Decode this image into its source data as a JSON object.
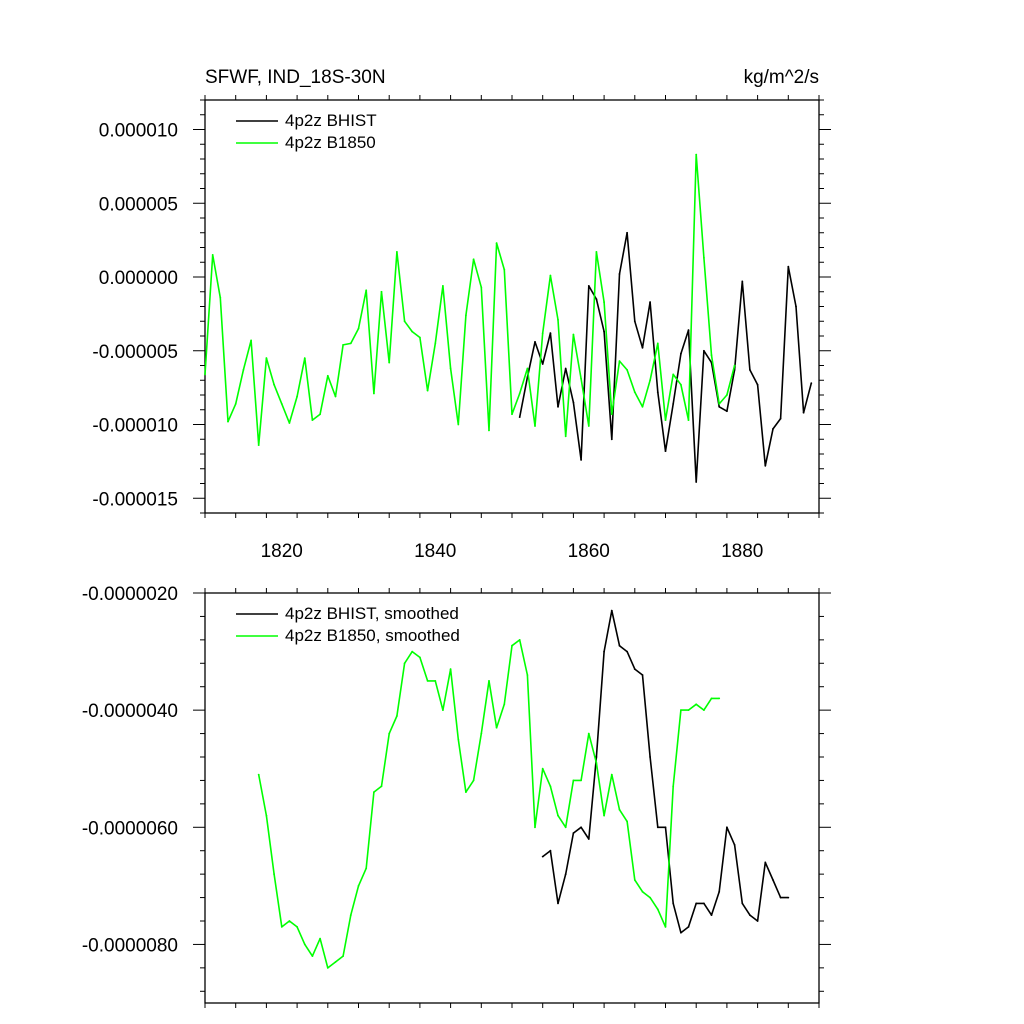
{
  "chart_data": [
    {
      "type": "line",
      "title_left": "SFWF, IND_18S-30N",
      "title_right": "kg/m^2/s",
      "xlim": [
        1810,
        1890
      ],
      "ylim": [
        -1.6e-05,
        1.2e-05
      ],
      "x_ticks": [
        1820,
        1840,
        1860,
        1880
      ],
      "x_tick_labels": [
        "1820",
        "1840",
        "1860",
        "1880"
      ],
      "y_ticks": [
        1e-05,
        5e-06,
        0,
        -5e-06,
        -1e-05,
        -1.5e-05
      ],
      "y_tick_labels": [
        "0.000010",
        "0.000005",
        "0.000000",
        "-0.000005",
        "-0.000010",
        "-0.000015"
      ],
      "legend_position": "top-left",
      "series": [
        {
          "name": "4p2z BHIST",
          "color": "#000000",
          "x": [
            1851,
            1852,
            1853,
            1854,
            1855,
            1856,
            1857,
            1858,
            1859,
            1860,
            1861,
            1862,
            1863,
            1864,
            1865,
            1866,
            1867,
            1868,
            1869,
            1870,
            1871,
            1872,
            1873,
            1874,
            1875,
            1876,
            1877,
            1878,
            1879,
            1880,
            1881,
            1882,
            1883,
            1884,
            1885,
            1886,
            1887,
            1888,
            1889
          ],
          "y": [
            -9.5e-06,
            -6.8e-06,
            -4.4e-06,
            -5.9e-06,
            -3.8e-06,
            -8.8e-06,
            -6.2e-06,
            -8.5e-06,
            -1.24e-05,
            -6e-07,
            -1.5e-06,
            -3.7e-06,
            -1.1e-05,
            2e-07,
            3e-06,
            -3e-06,
            -4.8e-06,
            -1.7e-06,
            -7.8e-06,
            -1.18e-05,
            -8.6e-06,
            -5.2e-06,
            -3.6e-06,
            -1.39e-05,
            -5e-06,
            -5.8e-06,
            -8.8e-06,
            -9.1e-06,
            -6.3e-06,
            -3e-07,
            -6.3e-06,
            -7.3e-06,
            -1.28e-05,
            -1.03e-05,
            -9.6e-06,
            7e-07,
            -2e-06,
            -9.2e-06,
            -7.2e-06
          ]
        },
        {
          "name": "4p2z B1850",
          "color": "#00ff00",
          "x": [
            1810,
            1811,
            1812,
            1813,
            1814,
            1815,
            1816,
            1817,
            1818,
            1819,
            1820,
            1821,
            1822,
            1823,
            1824,
            1825,
            1826,
            1827,
            1828,
            1829,
            1830,
            1831,
            1832,
            1833,
            1834,
            1835,
            1836,
            1837,
            1838,
            1839,
            1840,
            1841,
            1842,
            1843,
            1844,
            1845,
            1846,
            1847,
            1848,
            1849,
            1850,
            1851,
            1852,
            1853,
            1854,
            1855,
            1856,
            1857,
            1858,
            1859,
            1860,
            1861,
            1862,
            1863,
            1864,
            1865,
            1866,
            1867,
            1868,
            1869,
            1870,
            1871,
            1872,
            1873,
            1874,
            1875,
            1876,
            1877,
            1878,
            1879
          ],
          "y": [
            -6.6e-06,
            1.5e-06,
            -1.4e-06,
            -9.8e-06,
            -8.6e-06,
            -6.3e-06,
            -4.3e-06,
            -1.14e-05,
            -5.5e-06,
            -7.3e-06,
            -8.6e-06,
            -9.9e-06,
            -8.1e-06,
            -5.5e-06,
            -9.7e-06,
            -9.3e-06,
            -6.7e-06,
            -8.1e-06,
            -4.6e-06,
            -4.5e-06,
            -3.5e-06,
            -9e-07,
            -7.9e-06,
            -1e-06,
            -5.8e-06,
            1.7e-06,
            -3e-06,
            -3.7e-06,
            -4.1e-06,
            -7.7e-06,
            -4.5e-06,
            -6e-07,
            -6.2e-06,
            -1e-05,
            -2.6e-06,
            1.2e-06,
            -7e-07,
            -1.04e-05,
            2.3e-06,
            5e-07,
            -9.3e-06,
            -7.9e-06,
            -6.2e-06,
            -1.01e-05,
            -3.8e-06,
            1e-07,
            -2.9e-06,
            -1.08e-05,
            -3.9e-06,
            -6.9e-06,
            -1.01e-05,
            1.7e-06,
            -1.7e-06,
            -9.3e-06,
            -5.7e-06,
            -6.3e-06,
            -7.8e-06,
            -8.8e-06,
            -7e-06,
            -4.5e-06,
            -9.7e-06,
            -6.6e-06,
            -7.3e-06,
            -9.7e-06,
            8.3e-06,
            1.3e-06,
            -5.3e-06,
            -8.6e-06,
            -8e-06,
            -6e-06
          ]
        }
      ]
    },
    {
      "type": "line",
      "xlim": [
        1810,
        1890
      ],
      "ylim": [
        -9e-06,
        -2e-06
      ],
      "x_ticks": [
        1820,
        1840,
        1860,
        1880
      ],
      "y_ticks": [
        -2e-06,
        -4e-06,
        -6e-06,
        -8e-06
      ],
      "y_tick_labels": [
        "-0.0000020",
        "-0.0000040",
        "-0.0000060",
        "-0.0000080"
      ],
      "legend_position": "top-left",
      "series": [
        {
          "name": "4p2z BHIST, smoothed",
          "color": "#000000",
          "x": [
            1854,
            1855,
            1856,
            1857,
            1858,
            1859,
            1860,
            1861,
            1862,
            1863,
            1864,
            1865,
            1866,
            1867,
            1868,
            1869,
            1870,
            1871,
            1872,
            1873,
            1874,
            1875,
            1876,
            1877,
            1878,
            1879,
            1880,
            1881,
            1882,
            1883,
            1884,
            1885,
            1886
          ],
          "y": [
            -6.5e-06,
            -6.4e-06,
            -7.3e-06,
            -6.8e-06,
            -6.1e-06,
            -6e-06,
            -6.2e-06,
            -4.8e-06,
            -3e-06,
            -2.3e-06,
            -2.9e-06,
            -3e-06,
            -3.3e-06,
            -3.4e-06,
            -4.8e-06,
            -6e-06,
            -6e-06,
            -7.3e-06,
            -7.8e-06,
            -7.7e-06,
            -7.3e-06,
            -7.3e-06,
            -7.5e-06,
            -7.1e-06,
            -6e-06,
            -6.3e-06,
            -7.3e-06,
            -7.5e-06,
            -7.6e-06,
            -6.6e-06,
            -6.9e-06,
            -7.2e-06,
            -7.2e-06
          ]
        },
        {
          "name": "4p2z B1850, smoothed",
          "color": "#00ff00",
          "x": [
            1817,
            1818,
            1819,
            1820,
            1821,
            1822,
            1823,
            1824,
            1825,
            1826,
            1827,
            1828,
            1829,
            1830,
            1831,
            1832,
            1833,
            1834,
            1835,
            1836,
            1837,
            1838,
            1839,
            1840,
            1841,
            1842,
            1843,
            1844,
            1845,
            1846,
            1847,
            1848,
            1849,
            1850,
            1851,
            1852,
            1853,
            1854,
            1855,
            1856,
            1857,
            1858,
            1859,
            1860,
            1861,
            1862,
            1863,
            1864,
            1865,
            1866,
            1867,
            1868,
            1869,
            1870,
            1871,
            1872,
            1873,
            1874,
            1875,
            1876,
            1877
          ],
          "y": [
            -5.1e-06,
            -5.8e-06,
            -6.8e-06,
            -7.7e-06,
            -7.6e-06,
            -7.7e-06,
            -8e-06,
            -8.2e-06,
            -7.9e-06,
            -8.4e-06,
            -8.3e-06,
            -8.2e-06,
            -7.5e-06,
            -7e-06,
            -6.7e-06,
            -5.4e-06,
            -5.3e-06,
            -4.4e-06,
            -4.1e-06,
            -3.2e-06,
            -3e-06,
            -3.1e-06,
            -3.5e-06,
            -3.5e-06,
            -4e-06,
            -3.3e-06,
            -4.5e-06,
            -5.4e-06,
            -5.2e-06,
            -4.4e-06,
            -3.5e-06,
            -4.3e-06,
            -3.9e-06,
            -2.9e-06,
            -2.8e-06,
            -3.4e-06,
            -6e-06,
            -5e-06,
            -5.3e-06,
            -5.8e-06,
            -6e-06,
            -5.2e-06,
            -5.2e-06,
            -4.4e-06,
            -4.9e-06,
            -5.8e-06,
            -5.1e-06,
            -5.7e-06,
            -5.9e-06,
            -6.9e-06,
            -7.1e-06,
            -7.2e-06,
            -7.4e-06,
            -7.7e-06,
            -5.3e-06,
            -4e-06,
            -4e-06,
            -3.9e-06,
            -4e-06,
            -3.8e-06,
            -3.8e-06
          ]
        }
      ]
    }
  ]
}
